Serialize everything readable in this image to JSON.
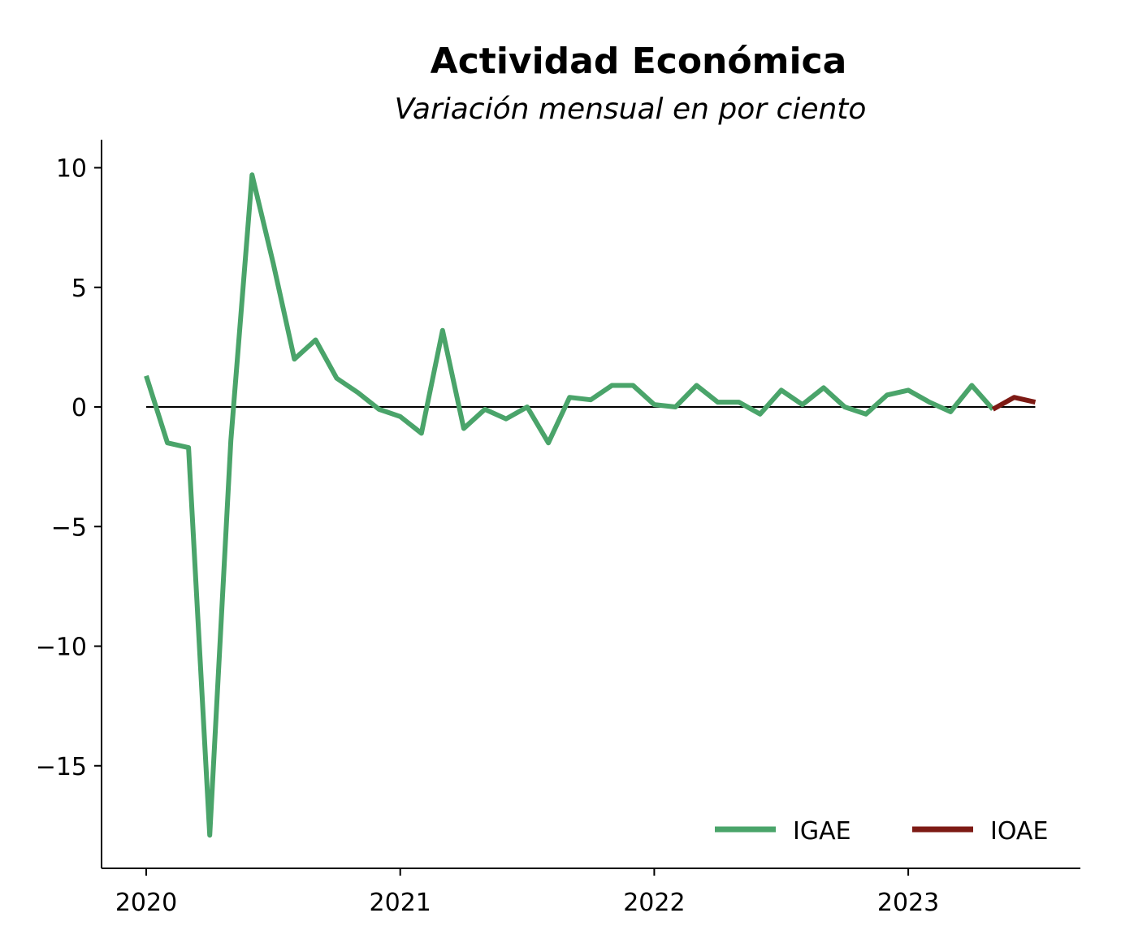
{
  "chart_data": {
    "type": "line",
    "title": "Actividad Económica",
    "subtitle": "Variación mensual en por ciento",
    "xlabel": "",
    "ylabel": "",
    "xlim": [
      2020.0,
      2023.54
    ],
    "ylim": [
      -19.0,
      11.2
    ],
    "xticks": [
      2020,
      2021,
      2022,
      2023
    ],
    "yticks": [
      10,
      5,
      0,
      -5,
      -10,
      -15
    ],
    "ytick_labels": [
      "10",
      "5",
      "0",
      "−5",
      "−10",
      "−15"
    ],
    "xtick_labels": [
      "2020",
      "2021",
      "2022",
      "2023"
    ],
    "zero_line": true,
    "grid": false,
    "legend_position": "lower-right",
    "series": [
      {
        "name": "IGAE",
        "color": "#4aa46a",
        "x": [
          "2020-01",
          "2020-02",
          "2020-03",
          "2020-04",
          "2020-05",
          "2020-06",
          "2020-07",
          "2020-08",
          "2020-09",
          "2020-10",
          "2020-11",
          "2020-12",
          "2021-01",
          "2021-02",
          "2021-03",
          "2021-04",
          "2021-05",
          "2021-06",
          "2021-07",
          "2021-08",
          "2021-09",
          "2021-10",
          "2021-11",
          "2021-12",
          "2022-01",
          "2022-02",
          "2022-03",
          "2022-04",
          "2022-05",
          "2022-06",
          "2022-07",
          "2022-08",
          "2022-09",
          "2022-10",
          "2022-11",
          "2022-12",
          "2023-01",
          "2023-02",
          "2023-03",
          "2023-04",
          "2023-05",
          "2023-06"
        ],
        "values": [
          1.3,
          -1.5,
          -1.7,
          -17.9,
          -1.4,
          9.7,
          6.0,
          2.0,
          2.8,
          1.2,
          0.6,
          -0.1,
          -0.4,
          -1.1,
          3.2,
          -0.9,
          -0.1,
          -0.5,
          0.0,
          -1.5,
          0.4,
          0.3,
          0.9,
          0.9,
          0.1,
          0.0,
          0.9,
          0.2,
          0.2,
          -0.3,
          0.7,
          0.1,
          0.8,
          0.0,
          -0.3,
          0.5,
          0.7,
          0.2,
          -0.2,
          0.9,
          -0.1,
          null
        ]
      },
      {
        "name": "IOAE",
        "color": "#7d1a14",
        "x": [
          "2023-05",
          "2023-06",
          "2023-07"
        ],
        "values": [
          -0.1,
          0.4,
          0.2
        ]
      }
    ]
  }
}
